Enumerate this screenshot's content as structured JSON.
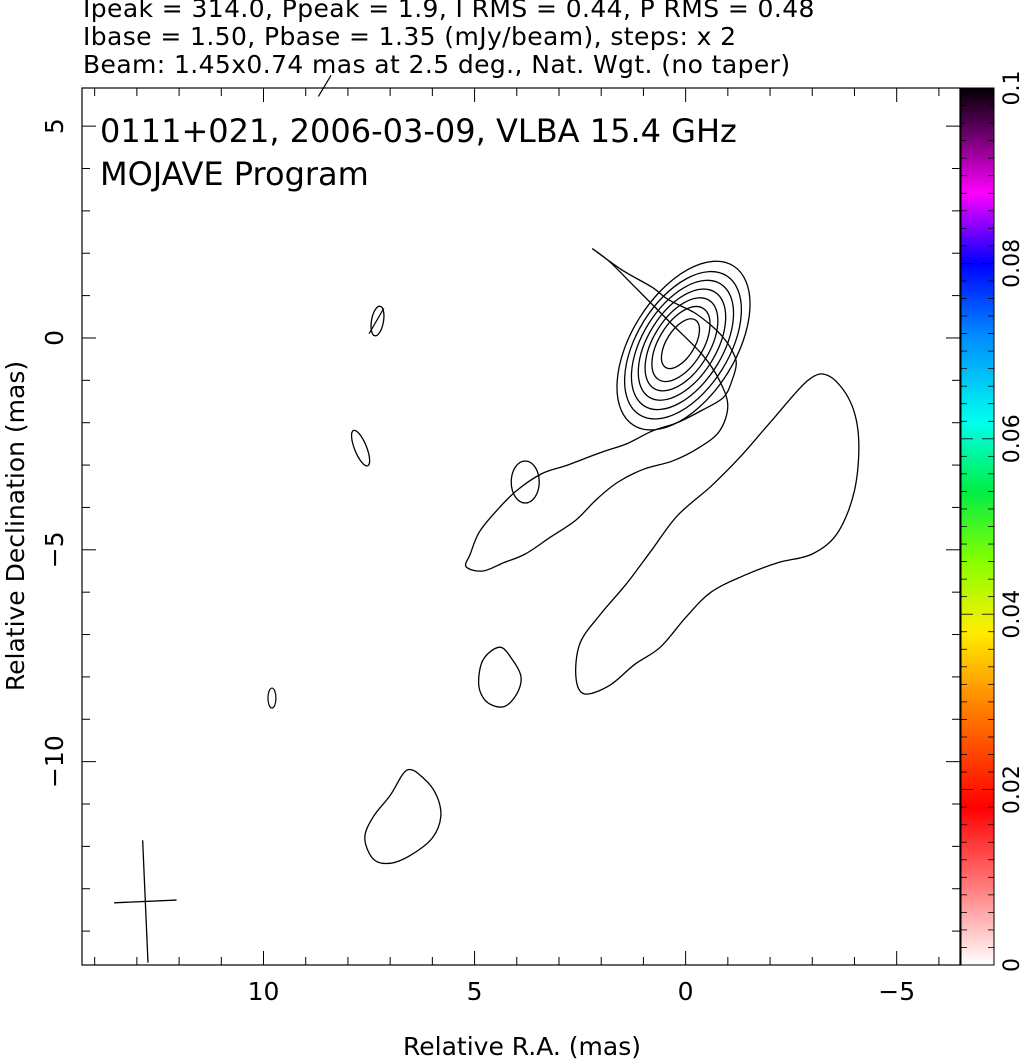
{
  "header": {
    "line1": "Ipeak = 314.0, Ppeak = 1.9, I RMS = 0.44, P RMS = 0.48",
    "line2": "Ibase = 1.50, Pbase = 1.35 (mJy/beam), steps: x 2",
    "line3": "Beam: 1.45x0.74 mas at 2.5 deg., Nat. Wgt. (no taper)"
  },
  "chart_data": {
    "type": "contour",
    "title": "0111+021, 2006-03-09, VLBA 15.4 GHz",
    "subtitle": "MOJAVE Program",
    "xlabel": "Relative R.A. (mas)",
    "ylabel": "Relative Declination (mas)",
    "xlim": [
      14.3,
      -6.5
    ],
    "ylim": [
      -14.8,
      5.9
    ],
    "x_ticks": [
      10,
      5,
      0,
      -5
    ],
    "y_ticks": [
      5,
      0,
      -5,
      -10
    ],
    "x_tick_labels": [
      "10",
      "5",
      "0",
      "−5"
    ],
    "y_tick_labels": [
      "5",
      "0",
      "−5",
      "−10"
    ],
    "colorbar": {
      "range": [
        0,
        0.1
      ],
      "ticks": [
        0,
        0.02,
        0.04,
        0.06,
        0.08,
        0.1
      ],
      "tick_labels": [
        "0",
        "0.02",
        "0.04",
        "0.06",
        "0.08",
        "0.1"
      ]
    },
    "beam": {
      "major": 1.45,
      "minor": 0.74,
      "pa_deg": 2.5,
      "center": [
        12.8,
        -13.3
      ]
    },
    "contours": [
      {
        "name": "jet-outer",
        "points": [
          [
            2.2,
            2.1
          ],
          [
            1.5,
            1.6
          ],
          [
            0.8,
            1.2
          ],
          [
            0.4,
            0.9
          ],
          [
            -0.2,
            0.6
          ],
          [
            -0.6,
            0.3
          ],
          [
            -0.9,
            0.0
          ],
          [
            -1.1,
            -0.3
          ],
          [
            -1.2,
            -0.6
          ],
          [
            -1.1,
            -1.0
          ],
          [
            -0.9,
            -1.4
          ],
          [
            -0.4,
            -1.7
          ],
          [
            0.2,
            -2.0
          ],
          [
            0.8,
            -2.2
          ],
          [
            1.4,
            -2.5
          ],
          [
            2.0,
            -2.7
          ],
          [
            2.8,
            -3.0
          ],
          [
            3.4,
            -3.2
          ],
          [
            4.0,
            -3.6
          ],
          [
            4.5,
            -4.1
          ],
          [
            4.9,
            -4.6
          ],
          [
            5.1,
            -5.1
          ],
          [
            5.2,
            -5.4
          ],
          [
            4.8,
            -5.5
          ],
          [
            4.3,
            -5.3
          ],
          [
            3.8,
            -5.1
          ],
          [
            3.2,
            -4.7
          ],
          [
            2.6,
            -4.3
          ],
          [
            2.1,
            -3.8
          ],
          [
            1.6,
            -3.4
          ],
          [
            1.0,
            -3.1
          ],
          [
            0.3,
            -2.9
          ],
          [
            -0.3,
            -2.6
          ],
          [
            -0.8,
            -2.2
          ],
          [
            -1.0,
            -1.6
          ],
          [
            -0.8,
            -1.0
          ],
          [
            -0.4,
            -0.4
          ],
          [
            0.4,
            0.4
          ],
          [
            1.2,
            1.2
          ],
          [
            1.8,
            1.8
          ]
        ]
      },
      {
        "name": "blob-east",
        "points": [
          [
            4.8,
            -7.6
          ],
          [
            4.4,
            -7.3
          ],
          [
            4.1,
            -7.6
          ],
          [
            3.9,
            -8.0
          ],
          [
            4.0,
            -8.4
          ],
          [
            4.3,
            -8.7
          ],
          [
            4.7,
            -8.6
          ],
          [
            4.9,
            -8.2
          ]
        ]
      },
      {
        "name": "blob-south",
        "points": [
          [
            6.6,
            -10.2
          ],
          [
            6.2,
            -10.4
          ],
          [
            5.9,
            -10.8
          ],
          [
            5.8,
            -11.3
          ],
          [
            6.0,
            -11.8
          ],
          [
            6.5,
            -12.2
          ],
          [
            7.0,
            -12.4
          ],
          [
            7.4,
            -12.3
          ],
          [
            7.6,
            -11.8
          ],
          [
            7.4,
            -11.3
          ],
          [
            7.0,
            -10.8
          ]
        ]
      },
      {
        "name": "blob-west",
        "points": [
          [
            -2.9,
            -1.0
          ],
          [
            -3.4,
            -0.9
          ],
          [
            -3.9,
            -1.5
          ],
          [
            -4.1,
            -2.4
          ],
          [
            -4.0,
            -3.6
          ],
          [
            -3.6,
            -4.6
          ],
          [
            -3.0,
            -5.1
          ],
          [
            -2.2,
            -5.3
          ],
          [
            -1.4,
            -5.6
          ],
          [
            -0.6,
            -6.0
          ],
          [
            0.0,
            -6.6
          ],
          [
            0.6,
            -7.3
          ],
          [
            1.2,
            -7.7
          ],
          [
            1.8,
            -8.2
          ],
          [
            2.4,
            -8.4
          ],
          [
            2.6,
            -8.0
          ],
          [
            2.5,
            -7.2
          ],
          [
            2.0,
            -6.5
          ],
          [
            1.4,
            -5.8
          ],
          [
            0.8,
            -5.0
          ],
          [
            0.2,
            -4.2
          ],
          [
            -0.6,
            -3.5
          ],
          [
            -1.3,
            -2.8
          ],
          [
            -2.0,
            -2.0
          ]
        ]
      }
    ]
  }
}
